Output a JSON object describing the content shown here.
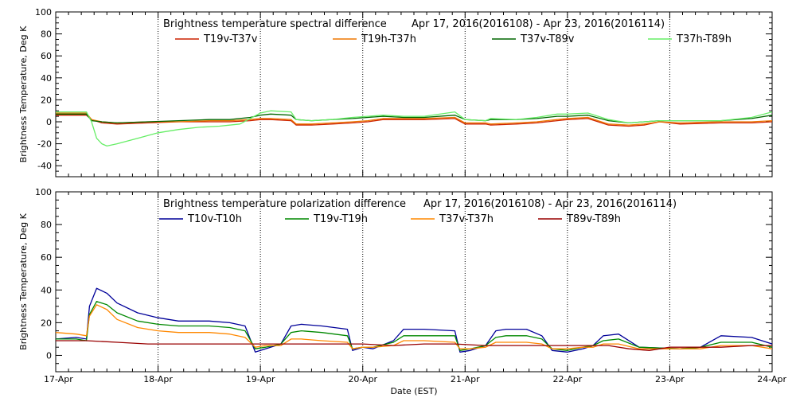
{
  "chart_data": [
    {
      "type": "line",
      "title": "Brightness temperature spectral difference",
      "date_range": "Apr 17, 2016(2016108) - Apr 23, 2016(2016114)",
      "ylabel": "Brightness Temperature, Deg K",
      "ylim": [
        -50,
        100
      ],
      "yticks": [
        -40,
        -20,
        0,
        20,
        40,
        60,
        80,
        100
      ],
      "xlim": [
        0,
        7
      ],
      "series": [
        {
          "name": "T19v-T37v",
          "color": "#cc2200",
          "x": [
            0,
            0.3,
            0.35,
            0.45,
            0.6,
            0.9,
            1.2,
            1.5,
            1.7,
            1.9,
            2.0,
            2.1,
            2.3,
            2.35,
            2.5,
            2.7,
            2.9,
            3.05,
            3.2,
            3.4,
            3.6,
            3.9,
            4.0,
            4.2,
            4.25,
            4.5,
            4.7,
            4.9,
            5.0,
            5.2,
            5.4,
            5.6,
            5.75,
            5.9,
            6.1,
            6.5,
            6.8,
            7.0
          ],
          "y": [
            6,
            6,
            2,
            -1,
            -2,
            -1,
            0,
            0,
            0,
            1,
            2,
            2,
            1,
            -3,
            -3,
            -2,
            -1,
            0,
            2,
            2,
            2,
            3,
            -2,
            -2,
            -3,
            -2,
            -1,
            1,
            2,
            3,
            -3,
            -4,
            -3,
            0,
            -2,
            -1,
            -1,
            0
          ]
        },
        {
          "name": "T19h-T37h",
          "color": "#ee7700",
          "x": [
            0,
            0.3,
            0.35,
            0.45,
            0.6,
            0.9,
            1.2,
            1.5,
            1.7,
            1.9,
            2.0,
            2.1,
            2.3,
            2.35,
            2.5,
            2.7,
            2.9,
            3.05,
            3.2,
            3.4,
            3.6,
            3.9,
            4.0,
            4.2,
            4.25,
            4.5,
            4.7,
            4.9,
            5.0,
            5.2,
            5.4,
            5.6,
            5.75,
            5.9,
            6.1,
            6.5,
            6.8,
            7.0
          ],
          "y": [
            8,
            8,
            2,
            0,
            -1,
            0,
            0,
            1,
            1,
            2,
            3,
            3,
            2,
            -2,
            -2,
            -1,
            0,
            1,
            3,
            3,
            3,
            4,
            -1,
            -1,
            -2,
            -1,
            0,
            2,
            3,
            4,
            -2,
            -3,
            -2,
            0,
            -1,
            0,
            0,
            1
          ]
        },
        {
          "name": "T37v-T89v",
          "color": "#006600",
          "x": [
            0,
            0.3,
            0.35,
            0.45,
            0.6,
            0.9,
            1.2,
            1.5,
            1.7,
            1.9,
            2.0,
            2.1,
            2.3,
            2.35,
            2.5,
            2.7,
            2.9,
            3.05,
            3.2,
            3.4,
            3.6,
            3.9,
            4.0,
            4.2,
            4.25,
            4.5,
            4.7,
            4.9,
            5.0,
            5.2,
            5.4,
            5.6,
            5.75,
            5.9,
            6.1,
            6.5,
            6.8,
            7.0
          ],
          "y": [
            7,
            7,
            1,
            0,
            -1,
            0,
            1,
            2,
            2,
            4,
            6,
            7,
            6,
            2,
            1,
            2,
            3,
            4,
            5,
            4,
            4,
            6,
            2,
            1,
            2,
            2,
            3,
            5,
            5,
            6,
            1,
            -1,
            0,
            1,
            1,
            1,
            3,
            6
          ]
        },
        {
          "name": "T37h-T89h",
          "color": "#66ee66",
          "x": [
            0,
            0.3,
            0.35,
            0.4,
            0.45,
            0.5,
            0.6,
            0.8,
            1.0,
            1.2,
            1.4,
            1.6,
            1.8,
            1.9,
            2.0,
            2.1,
            2.3,
            2.35,
            2.5,
            2.7,
            2.9,
            3.05,
            3.2,
            3.4,
            3.6,
            3.9,
            4.0,
            4.2,
            4.25,
            4.5,
            4.7,
            4.9,
            5.0,
            5.2,
            5.4,
            5.6,
            5.75,
            5.9,
            6.1,
            6.5,
            6.8,
            7.0
          ],
          "y": [
            9,
            9,
            0,
            -15,
            -20,
            -22,
            -20,
            -15,
            -10,
            -7,
            -5,
            -4,
            -2,
            3,
            8,
            10,
            9,
            2,
            1,
            2,
            4,
            5,
            6,
            5,
            5,
            9,
            2,
            1,
            3,
            2,
            4,
            7,
            7,
            8,
            2,
            -1,
            0,
            1,
            1,
            1,
            4,
            9
          ]
        }
      ]
    },
    {
      "type": "line",
      "title": "Brightness temperature polarization difference",
      "date_range": "Apr 17, 2016(2016108) - Apr 23, 2016(2016114)",
      "ylabel": "Brightness Temperature, Deg K",
      "xlabel": "Date (EST)",
      "ylim": [
        -10,
        100
      ],
      "yticks": [
        0,
        20,
        40,
        60,
        80,
        100
      ],
      "xlim": [
        0,
        7
      ],
      "xtick_labels": [
        "17-Apr",
        "18-Apr",
        "19-Apr",
        "20-Apr",
        "21-Apr",
        "22-Apr",
        "23-Apr",
        "24-Apr"
      ],
      "series": [
        {
          "name": "T10v-T10h",
          "color": "#000099",
          "x": [
            0,
            0.2,
            0.3,
            0.33,
            0.4,
            0.5,
            0.6,
            0.8,
            1.0,
            1.2,
            1.5,
            1.7,
            1.85,
            1.95,
            2.05,
            2.2,
            2.3,
            2.4,
            2.6,
            2.85,
            2.9,
            3.0,
            3.1,
            3.3,
            3.4,
            3.6,
            3.9,
            3.95,
            4.05,
            4.2,
            4.3,
            4.4,
            4.6,
            4.75,
            4.85,
            5.0,
            5.15,
            5.25,
            5.35,
            5.5,
            5.7,
            6.1,
            6.3,
            6.5,
            6.8,
            7.0
          ],
          "y": [
            10,
            11,
            10,
            30,
            41,
            38,
            32,
            26,
            23,
            21,
            21,
            20,
            18,
            2,
            4,
            7,
            18,
            19,
            18,
            16,
            3,
            5,
            4,
            9,
            16,
            16,
            15,
            2,
            3,
            6,
            15,
            16,
            16,
            12,
            3,
            2,
            4,
            6,
            12,
            13,
            5,
            4,
            5,
            12,
            11,
            7
          ]
        },
        {
          "name": "T19v-T19h",
          "color": "#008800",
          "x": [
            0,
            0.2,
            0.3,
            0.33,
            0.4,
            0.5,
            0.6,
            0.8,
            1.0,
            1.2,
            1.5,
            1.7,
            1.85,
            1.95,
            2.05,
            2.2,
            2.3,
            2.4,
            2.6,
            2.85,
            2.9,
            3.0,
            3.1,
            3.3,
            3.4,
            3.6,
            3.9,
            3.95,
            4.05,
            4.2,
            4.3,
            4.4,
            4.6,
            4.75,
            4.85,
            5.0,
            5.15,
            5.25,
            5.35,
            5.5,
            5.7,
            6.1,
            6.3,
            6.5,
            6.8,
            7.0
          ],
          "y": [
            10,
            10,
            9,
            25,
            33,
            31,
            26,
            21,
            19,
            18,
            18,
            17,
            15,
            4,
            5,
            7,
            14,
            15,
            14,
            12,
            4,
            5,
            5,
            8,
            12,
            12,
            12,
            3,
            4,
            6,
            11,
            12,
            12,
            10,
            4,
            3,
            5,
            6,
            9,
            10,
            5,
            4,
            5,
            8,
            8,
            5
          ]
        },
        {
          "name": "T37v-T37h",
          "color": "#ff8800",
          "x": [
            0,
            0.2,
            0.3,
            0.33,
            0.4,
            0.5,
            0.6,
            0.8,
            1.0,
            1.2,
            1.5,
            1.7,
            1.85,
            1.95,
            2.05,
            2.2,
            2.3,
            2.4,
            2.6,
            2.85,
            2.9,
            3.0,
            3.1,
            3.3,
            3.4,
            3.6,
            3.9,
            3.95,
            4.05,
            4.2,
            4.3,
            4.4,
            4.6,
            4.75,
            4.85,
            5.0,
            5.15,
            5.25,
            5.35,
            5.5,
            5.7,
            6.1,
            6.3,
            6.5,
            6.8,
            7.0
          ],
          "y": [
            14,
            13,
            12,
            24,
            31,
            28,
            22,
            17,
            15,
            14,
            14,
            13,
            11,
            5,
            6,
            6,
            10,
            10,
            9,
            8,
            4,
            5,
            5,
            6,
            9,
            9,
            8,
            4,
            4,
            5,
            8,
            8,
            8,
            7,
            4,
            4,
            5,
            5,
            7,
            7,
            4,
            4,
            4,
            6,
            6,
            4
          ]
        },
        {
          "name": "T89v-T89h",
          "color": "#990000",
          "x": [
            0,
            0.3,
            0.6,
            0.9,
            1.2,
            1.5,
            1.8,
            2.1,
            2.4,
            2.7,
            3.0,
            3.3,
            3.6,
            3.9,
            4.2,
            4.5,
            4.8,
            5.1,
            5.4,
            5.6,
            5.8,
            5.9,
            6.0,
            6.2,
            6.5,
            6.8,
            7.0
          ],
          "y": [
            9,
            9,
            8,
            7,
            7,
            7,
            7,
            7,
            7,
            7,
            7,
            6,
            7,
            7,
            6,
            6,
            6,
            6,
            6,
            4,
            3,
            4,
            5,
            5,
            5,
            6,
            6
          ]
        }
      ]
    }
  ]
}
